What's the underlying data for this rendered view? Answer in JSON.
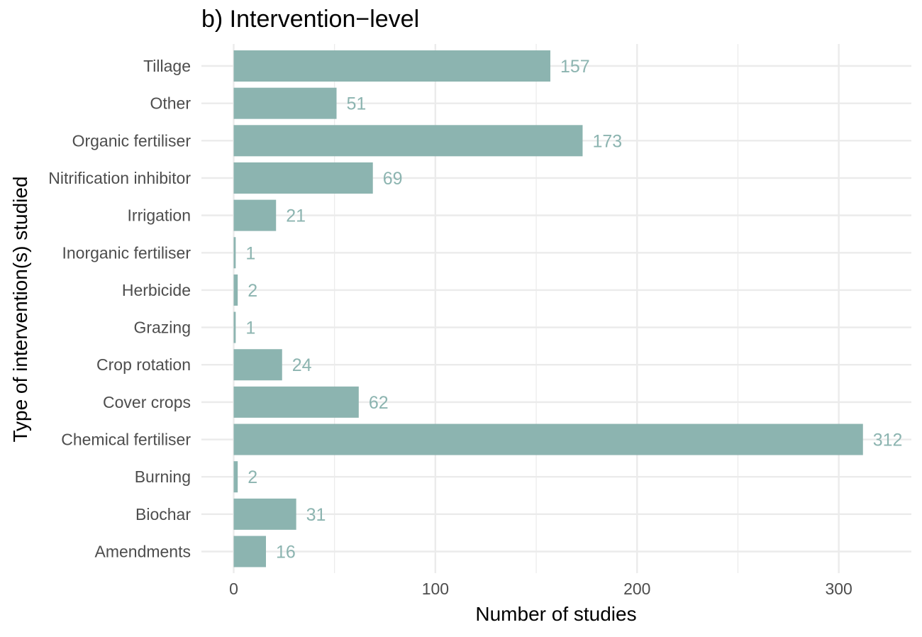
{
  "chart_data": {
    "type": "bar",
    "orientation": "horizontal",
    "title": "b) Intervention−level",
    "xlabel": "Number of studies",
    "ylabel": "Type of intervention(s) studied",
    "categories": [
      "Amendments",
      "Biochar",
      "Burning",
      "Chemical fertiliser",
      "Cover crops",
      "Crop rotation",
      "Grazing",
      "Herbicide",
      "Inorganic fertiliser",
      "Irrigation",
      "Nitrification inhibitor",
      "Organic fertiliser",
      "Other",
      "Tillage"
    ],
    "values": [
      16,
      31,
      2,
      312,
      62,
      24,
      1,
      2,
      1,
      21,
      69,
      173,
      51,
      157
    ],
    "data_labels": [
      "16",
      "31",
      "2",
      "312",
      "62",
      "24",
      "1",
      "2",
      "1",
      "21",
      "69",
      "173",
      "51",
      "157"
    ],
    "xlim": [
      -16,
      336
    ],
    "x_ticks": [
      0,
      100,
      200,
      300
    ],
    "x_tick_labels": [
      "0",
      "100",
      "200",
      "300"
    ],
    "grid": true,
    "legend": "none",
    "bar_color": "#8cb4b0",
    "label_color": "#8cb4b0",
    "grid_color": "#ebebeb"
  }
}
